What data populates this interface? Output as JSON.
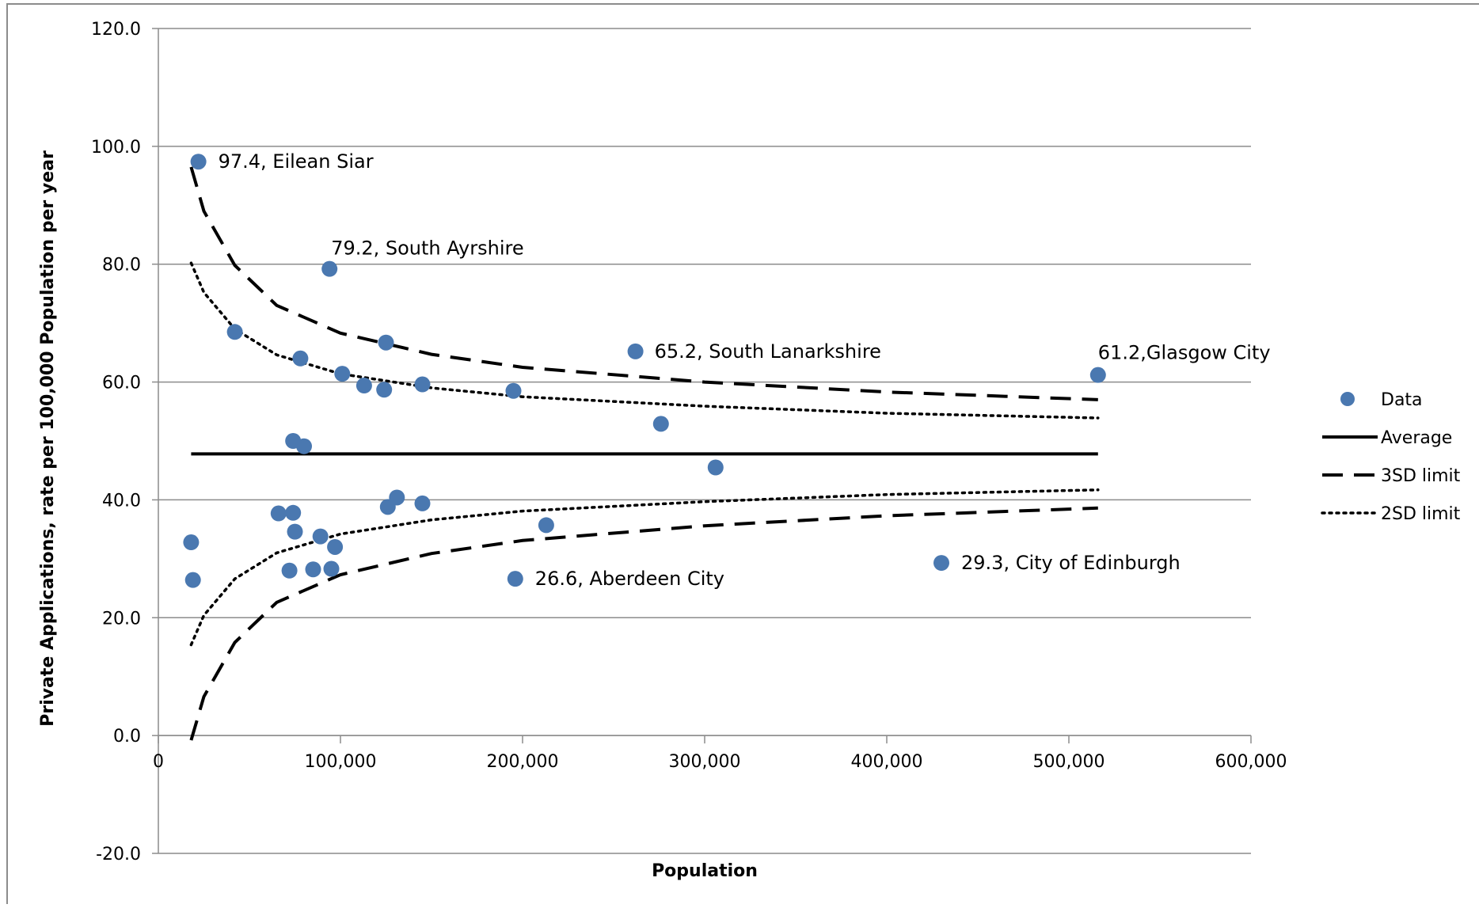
{
  "chart_data": {
    "type": "scatter",
    "title": "",
    "xlabel": "Population",
    "ylabel": "Private Applications, rate per 100,000 Population per year",
    "xlim": [
      0,
      600000
    ],
    "ylim": [
      -20,
      120
    ],
    "x_ticks": [
      0,
      100000,
      200000,
      300000,
      400000,
      500000,
      600000
    ],
    "x_tick_labels": [
      "0",
      "100,000",
      "200,000",
      "300,000",
      "400,000",
      "500,000",
      "600,000"
    ],
    "y_ticks": [
      -20,
      0,
      20,
      40,
      60,
      80,
      100,
      120
    ],
    "y_tick_labels": [
      "-20.0",
      "0.0",
      "20.0",
      "40.0",
      "60.0",
      "80.0",
      "100.0",
      "120.0"
    ],
    "grid": "horizontal",
    "legend_position": "right",
    "colors": {
      "data": "#4a78b0",
      "lines": "#000000"
    },
    "series": [
      {
        "name": "Data",
        "kind": "scatter",
        "points": [
          {
            "x": 22000,
            "y": 97.4
          },
          {
            "x": 94000,
            "y": 79.2
          },
          {
            "x": 42000,
            "y": 68.5
          },
          {
            "x": 125000,
            "y": 66.7
          },
          {
            "x": 78000,
            "y": 64.0
          },
          {
            "x": 101000,
            "y": 61.4
          },
          {
            "x": 113000,
            "y": 59.4
          },
          {
            "x": 124000,
            "y": 58.7
          },
          {
            "x": 145000,
            "y": 59.6
          },
          {
            "x": 195000,
            "y": 58.5
          },
          {
            "x": 262000,
            "y": 65.2
          },
          {
            "x": 516000,
            "y": 61.2
          },
          {
            "x": 276000,
            "y": 52.9
          },
          {
            "x": 306000,
            "y": 45.5
          },
          {
            "x": 74000,
            "y": 50.0
          },
          {
            "x": 80000,
            "y": 49.1
          },
          {
            "x": 18000,
            "y": 32.8
          },
          {
            "x": 19000,
            "y": 26.4
          },
          {
            "x": 66000,
            "y": 37.7
          },
          {
            "x": 74000,
            "y": 37.8
          },
          {
            "x": 75000,
            "y": 34.6
          },
          {
            "x": 72000,
            "y": 28.0
          },
          {
            "x": 85000,
            "y": 28.2
          },
          {
            "x": 89000,
            "y": 33.8
          },
          {
            "x": 95000,
            "y": 28.3
          },
          {
            "x": 97000,
            "y": 32.0
          },
          {
            "x": 126000,
            "y": 38.8
          },
          {
            "x": 131000,
            "y": 40.4
          },
          {
            "x": 145000,
            "y": 39.4
          },
          {
            "x": 213000,
            "y": 35.7
          },
          {
            "x": 196000,
            "y": 26.6
          },
          {
            "x": 430000,
            "y": 29.3
          }
        ]
      },
      {
        "name": "Average",
        "kind": "line",
        "style": "solid",
        "points": [
          {
            "x": 18000,
            "y": 47.8
          },
          {
            "x": 516000,
            "y": 47.8
          }
        ]
      },
      {
        "name": "3SD limit",
        "kind": "line",
        "style": "dashed",
        "upper": [
          {
            "x": 18000,
            "y": 96.5
          },
          {
            "x": 25000,
            "y": 89.0
          },
          {
            "x": 42000,
            "y": 79.8
          },
          {
            "x": 65000,
            "y": 73.0
          },
          {
            "x": 100000,
            "y": 68.3
          },
          {
            "x": 150000,
            "y": 64.7
          },
          {
            "x": 200000,
            "y": 62.5
          },
          {
            "x": 300000,
            "y": 60.0
          },
          {
            "x": 400000,
            "y": 58.3
          },
          {
            "x": 516000,
            "y": 57.0
          }
        ],
        "lower": [
          {
            "x": 18000,
            "y": -0.8
          },
          {
            "x": 25000,
            "y": 6.6
          },
          {
            "x": 42000,
            "y": 15.8
          },
          {
            "x": 65000,
            "y": 22.6
          },
          {
            "x": 100000,
            "y": 27.3
          },
          {
            "x": 150000,
            "y": 30.9
          },
          {
            "x": 200000,
            "y": 33.1
          },
          {
            "x": 300000,
            "y": 35.6
          },
          {
            "x": 400000,
            "y": 37.3
          },
          {
            "x": 516000,
            "y": 38.6
          }
        ]
      },
      {
        "name": "2SD  limit",
        "kind": "line",
        "style": "dotted",
        "upper": [
          {
            "x": 18000,
            "y": 80.2
          },
          {
            "x": 25000,
            "y": 75.2
          },
          {
            "x": 42000,
            "y": 69.0
          },
          {
            "x": 65000,
            "y": 64.6
          },
          {
            "x": 100000,
            "y": 61.4
          },
          {
            "x": 150000,
            "y": 59.0
          },
          {
            "x": 200000,
            "y": 57.5
          },
          {
            "x": 300000,
            "y": 55.9
          },
          {
            "x": 400000,
            "y": 54.7
          },
          {
            "x": 516000,
            "y": 53.9
          }
        ],
        "lower": [
          {
            "x": 18000,
            "y": 15.4
          },
          {
            "x": 25000,
            "y": 20.4
          },
          {
            "x": 42000,
            "y": 26.6
          },
          {
            "x": 65000,
            "y": 31.0
          },
          {
            "x": 100000,
            "y": 34.2
          },
          {
            "x": 150000,
            "y": 36.6
          },
          {
            "x": 200000,
            "y": 38.1
          },
          {
            "x": 300000,
            "y": 39.7
          },
          {
            "x": 400000,
            "y": 40.9
          },
          {
            "x": 516000,
            "y": 41.7
          }
        ]
      }
    ],
    "annotations": [
      {
        "text": "97.4, Eilean Siar",
        "x": 22000,
        "y": 97.4
      },
      {
        "text": "79.2, South Ayrshire",
        "x": 94000,
        "y": 79.2
      },
      {
        "text": "65.2, South Lanarkshire",
        "x": 262000,
        "y": 65.2
      },
      {
        "text": "61.2,Glasgow City",
        "x": 516000,
        "y": 61.2
      },
      {
        "text": "26.6, Aberdeen City",
        "x": 196000,
        "y": 26.6
      },
      {
        "text": "29.3, City of Edinburgh",
        "x": 430000,
        "y": 29.3
      }
    ]
  }
}
